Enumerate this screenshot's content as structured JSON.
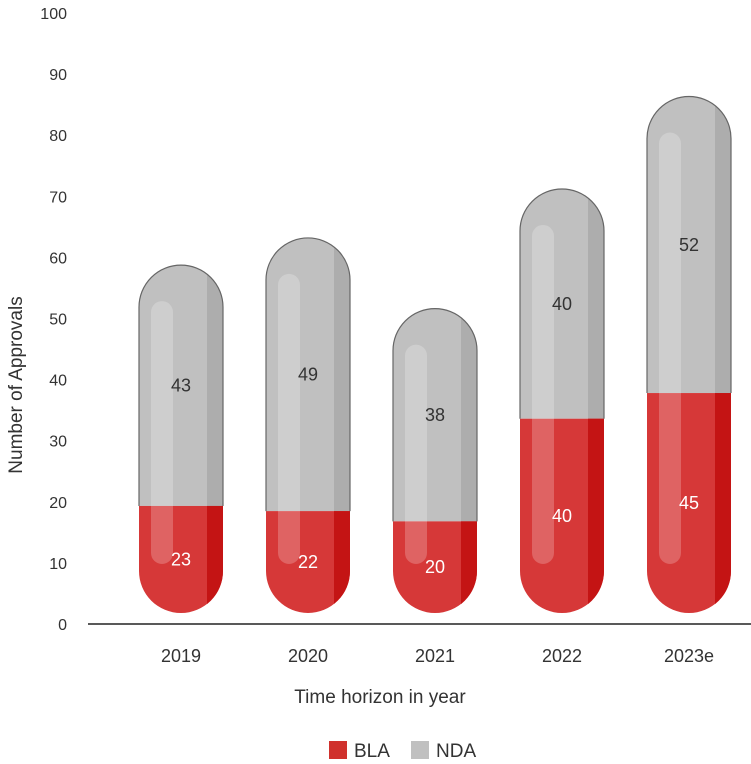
{
  "chart_data": {
    "type": "bar",
    "stacked": true,
    "style": "capsule",
    "categories": [
      "2019",
      "2020",
      "2021",
      "2022",
      "2023e"
    ],
    "series": [
      {
        "name": "BLA",
        "values": [
          23,
          22,
          20,
          40,
          45
        ],
        "color": "#d0312d"
      },
      {
        "name": "NDA",
        "values": [
          43,
          49,
          38,
          40,
          52
        ],
        "color": "#c0c0c0"
      }
    ],
    "xlabel": "Time horizon in year",
    "ylabel": "Number of Approvals",
    "ylim": [
      0,
      100
    ],
    "yticks": [
      0,
      10,
      20,
      30,
      40,
      50,
      60,
      70,
      80,
      90,
      100
    ],
    "grid": false,
    "legend": "bottom-center"
  }
}
